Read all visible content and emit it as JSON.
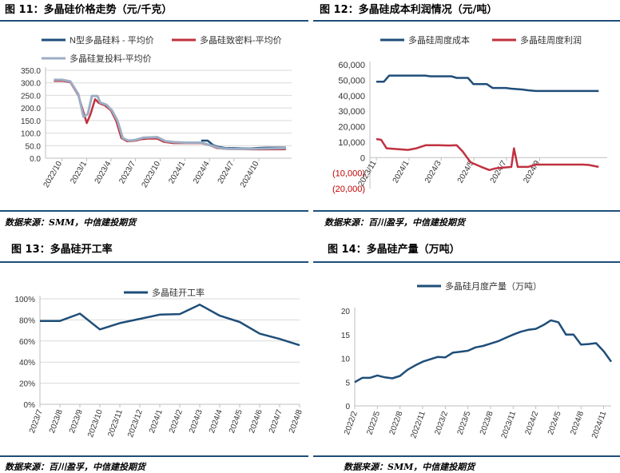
{
  "panels": {
    "p11": {
      "title": "图 11：多晶硅价格走势（元/千克）",
      "source": "数据来源：SMM，中信建投期货"
    },
    "p12": {
      "title": "图 12：多晶硅成本利润情况（元/吨）",
      "source": "数据来源：百川盈孚，中信建投期货"
    },
    "p13": {
      "title": "图 13：多晶硅开工率",
      "source": "数据来源：百川盈孚，中信建投期货"
    },
    "p14": {
      "title": "图 14：多晶硅产量（万吨）",
      "source": "数据来源：SMM，中信建投期货"
    }
  },
  "chart_data": [
    {
      "id": "c11",
      "type": "line",
      "title": "",
      "xlabel": "",
      "ylabel": "",
      "xlim": [
        "2022-08-01",
        "2025-01-31"
      ],
      "ylim": [
        0,
        350
      ],
      "yticks": [
        0,
        50,
        100,
        150,
        200,
        250,
        300,
        350
      ],
      "ytick_labels": [
        "0.0",
        "50.0",
        "100.0",
        "150.0",
        "200.0",
        "250.0",
        "300.0",
        "350.0"
      ],
      "xtick_labels": [
        "2022/10",
        "2023/1",
        "2023/4",
        "2023/7",
        "2023/10",
        "2024/1",
        "2024/4",
        "2024/7",
        "2024/10"
      ],
      "xtick_dates": [
        "2022-10-01",
        "2023-01-01",
        "2023-04-01",
        "2023-07-01",
        "2023-10-01",
        "2024-01-01",
        "2024-04-01",
        "2024-07-01",
        "2024-10-01"
      ],
      "legend_position": "top",
      "series": [
        {
          "name": "N型多晶硅料 - 平均价",
          "color": "#1f4e79",
          "points": [
            [
              "2024-03-01",
              70
            ],
            [
              "2024-03-25",
              70
            ],
            [
              "2024-04-15",
              52
            ],
            [
              "2024-05-05",
              45
            ],
            [
              "2024-06-01",
              40
            ],
            [
              "2024-07-01",
              40
            ],
            [
              "2024-08-01",
              39
            ],
            [
              "2024-09-01",
              39
            ],
            [
              "2024-10-01",
              41
            ],
            [
              "2024-11-01",
              42
            ],
            [
              "2025-01-10",
              42
            ]
          ]
        },
        {
          "name": "多晶硅致密料-平均价",
          "color": "#c0313f",
          "points": [
            [
              "2022-09-01",
              308
            ],
            [
              "2022-10-01",
              308
            ],
            [
              "2022-11-01",
              303
            ],
            [
              "2022-12-01",
              250
            ],
            [
              "2023-01-01",
              140
            ],
            [
              "2023-01-15",
              175
            ],
            [
              "2023-02-01",
              235
            ],
            [
              "2023-02-15",
              220
            ],
            [
              "2023-03-10",
              210
            ],
            [
              "2023-04-01",
              190
            ],
            [
              "2023-04-20",
              150
            ],
            [
              "2023-05-10",
              80
            ],
            [
              "2023-06-01",
              67
            ],
            [
              "2023-07-01",
              70
            ],
            [
              "2023-07-20",
              75
            ],
            [
              "2023-08-15",
              78
            ],
            [
              "2023-09-20",
              78
            ],
            [
              "2023-10-15",
              65
            ],
            [
              "2023-11-20",
              60
            ],
            [
              "2023-12-20",
              60
            ],
            [
              "2024-01-20",
              60
            ],
            [
              "2024-03-01",
              60
            ],
            [
              "2024-04-01",
              52
            ],
            [
              "2024-05-01",
              40
            ],
            [
              "2024-06-01",
              37
            ],
            [
              "2024-08-01",
              36
            ],
            [
              "2024-10-01",
              35
            ],
            [
              "2025-01-10",
              36
            ]
          ]
        },
        {
          "name": "多晶硅复投料-平均价",
          "color": "#9daec4",
          "points": [
            [
              "2022-09-01",
              312
            ],
            [
              "2022-10-01",
              312
            ],
            [
              "2022-11-01",
              306
            ],
            [
              "2022-12-01",
              255
            ],
            [
              "2022-12-20",
              165
            ],
            [
              "2023-01-05",
              175
            ],
            [
              "2023-01-20",
              248
            ],
            [
              "2023-02-10",
              248
            ],
            [
              "2023-02-20",
              222
            ],
            [
              "2023-03-15",
              213
            ],
            [
              "2023-04-05",
              190
            ],
            [
              "2023-04-25",
              150
            ],
            [
              "2023-05-15",
              80
            ],
            [
              "2023-06-05",
              70
            ],
            [
              "2023-07-01",
              73
            ],
            [
              "2023-08-01",
              82
            ],
            [
              "2023-09-20",
              84
            ],
            [
              "2023-10-20",
              68
            ],
            [
              "2023-11-20",
              64
            ],
            [
              "2024-01-01",
              62
            ],
            [
              "2024-03-01",
              62
            ],
            [
              "2024-04-10",
              50
            ],
            [
              "2024-05-10",
              40
            ],
            [
              "2024-06-10",
              37
            ],
            [
              "2024-08-01",
              37
            ],
            [
              "2024-10-01",
              38
            ],
            [
              "2025-01-10",
              40
            ]
          ]
        }
      ]
    },
    {
      "id": "c12",
      "type": "line",
      "title": "",
      "xlabel": "",
      "ylabel": "",
      "xlim": [
        "2023-10-20",
        "2025-01-05"
      ],
      "ylim": [
        -20000,
        60000
      ],
      "yticks": [
        -20000,
        -10000,
        0,
        10000,
        20000,
        30000,
        40000,
        50000,
        60000
      ],
      "ytick_labels": [
        "(20,000)",
        "(10,000)",
        "0",
        "10,000",
        "20,000",
        "30,000",
        "40,000",
        "50,000",
        "60,000"
      ],
      "xtick_labels": [
        "2023/11",
        "2024/1",
        "2024/3",
        "2024/5",
        "2024/7",
        "2024/9"
      ],
      "xtick_dates": [
        "2023-11-01",
        "2024-01-01",
        "2024-03-01",
        "2024-05-01",
        "2024-07-01",
        "2024-09-01"
      ],
      "legend_position": "top",
      "series": [
        {
          "name": "多晶硅周度成本",
          "color": "#1f4e79",
          "points": [
            [
              "2023-11-01",
              49000
            ],
            [
              "2023-11-15",
              49000
            ],
            [
              "2023-11-25",
              53000
            ],
            [
              "2024-01-31",
              53000
            ],
            [
              "2024-02-10",
              52500
            ],
            [
              "2024-03-20",
              52500
            ],
            [
              "2024-03-30",
              51500
            ],
            [
              "2024-04-20",
              51500
            ],
            [
              "2024-04-30",
              47500
            ],
            [
              "2024-05-25",
              47500
            ],
            [
              "2024-06-05",
              45000
            ],
            [
              "2024-06-30",
              45000
            ],
            [
              "2024-07-10",
              44500
            ],
            [
              "2024-07-30",
              44000
            ],
            [
              "2024-08-10",
              43500
            ],
            [
              "2024-08-25",
              43000
            ],
            [
              "2024-12-20",
              43000
            ]
          ]
        },
        {
          "name": "多晶硅周度利润",
          "color": "#c0313f",
          "points": [
            [
              "2023-11-01",
              12000
            ],
            [
              "2023-11-10",
              11500
            ],
            [
              "2023-11-20",
              6000
            ],
            [
              "2023-12-10",
              5500
            ],
            [
              "2023-12-30",
              5000
            ],
            [
              "2024-01-15",
              6000
            ],
            [
              "2024-02-01",
              8000
            ],
            [
              "2024-02-25",
              8000
            ],
            [
              "2024-03-15",
              7800
            ],
            [
              "2024-03-30",
              8000
            ],
            [
              "2024-04-10",
              4000
            ],
            [
              "2024-04-25",
              -3000
            ],
            [
              "2024-05-15",
              -6000
            ],
            [
              "2024-05-30",
              -8000
            ],
            [
              "2024-06-10",
              -7000
            ],
            [
              "2024-06-25",
              -6500
            ],
            [
              "2024-07-10",
              -6000
            ],
            [
              "2024-07-15",
              6000
            ],
            [
              "2024-07-22",
              -6000
            ],
            [
              "2024-08-10",
              -6000
            ],
            [
              "2024-08-25",
              -4500
            ],
            [
              "2024-10-20",
              -4500
            ],
            [
              "2024-11-20",
              -4500
            ],
            [
              "2024-12-01",
              -4700
            ],
            [
              "2024-12-20",
              -6000
            ]
          ]
        }
      ]
    },
    {
      "id": "c13",
      "type": "line",
      "title": "",
      "xlabel": "",
      "ylabel": "",
      "ylim": [
        0,
        100
      ],
      "yticks": [
        0,
        20,
        40,
        60,
        80,
        100
      ],
      "ytick_labels": [
        "0%",
        "20%",
        "40%",
        "60%",
        "80%",
        "100%"
      ],
      "legend_position": "top",
      "categories": [
        "2023/7",
        "2023/8",
        "2023/9",
        "2023/10",
        "2023/11",
        "2023/12",
        "2024/1",
        "2024/2",
        "2024/3",
        "2024/4",
        "2024/5",
        "2024/6",
        "2024/7",
        "2024/8"
      ],
      "series": [
        {
          "name": "多晶硅开工率",
          "color": "#1f4e79",
          "values": [
            79,
            79,
            86,
            71,
            77,
            81,
            85,
            85.5,
            94.5,
            84,
            78,
            67,
            62,
            56
          ]
        }
      ]
    },
    {
      "id": "c14",
      "type": "line",
      "title": "",
      "xlabel": "",
      "ylabel": "",
      "ylim": [
        0,
        20
      ],
      "yticks": [
        0,
        5,
        10,
        15,
        20
      ],
      "ytick_labels": [
        "0",
        "5",
        "10",
        "15",
        "20"
      ],
      "legend_position": "top",
      "categories": [
        "2022/2",
        "2022/3",
        "2022/4",
        "2022/5",
        "2022/6",
        "2022/7",
        "2022/8",
        "2022/9",
        "2022/10",
        "2022/11",
        "2022/12",
        "2023/1",
        "2023/2",
        "2023/3",
        "2023/4",
        "2023/5",
        "2023/6",
        "2023/7",
        "2023/8",
        "2023/9",
        "2023/10",
        "2023/11",
        "2023/12",
        "2024/1",
        "2024/2",
        "2024/3",
        "2024/4",
        "2024/5",
        "2024/6",
        "2024/7",
        "2024/8",
        "2024/9",
        "2024/10",
        "2024/11",
        "2024/12"
      ],
      "tick_every": 3,
      "series": [
        {
          "name": "多晶硅月度产量（万吨）",
          "color": "#1f4e79",
          "values": [
            5.0,
            5.9,
            5.9,
            6.4,
            6.0,
            5.8,
            6.3,
            7.6,
            8.5,
            9.3,
            9.8,
            10.3,
            10.2,
            11.2,
            11.4,
            11.6,
            12.3,
            12.6,
            13.1,
            13.6,
            14.3,
            15.0,
            15.6,
            16.0,
            16.2,
            17.0,
            18.0,
            17.6,
            15.0,
            15.0,
            12.9,
            13.0,
            13.2,
            11.5,
            9.3
          ]
        }
      ]
    }
  ]
}
